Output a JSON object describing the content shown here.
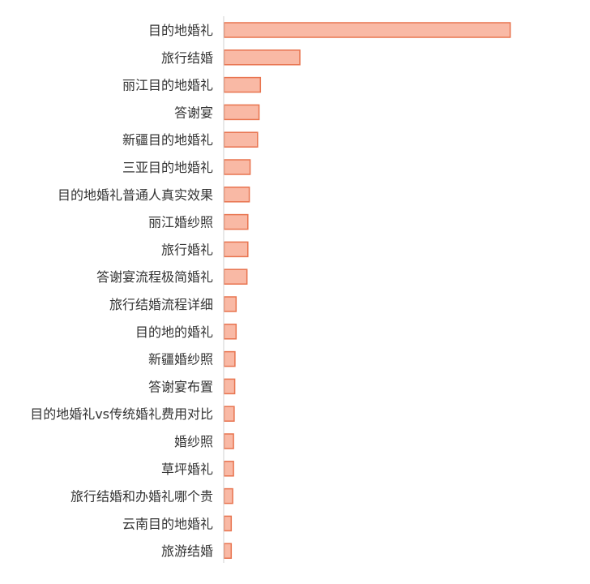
{
  "chart_data": {
    "type": "bar",
    "orientation": "horizontal",
    "title": "",
    "xlabel": "",
    "ylabel": "",
    "xlim": [
      0,
      100
    ],
    "grid": false,
    "legend": "none",
    "bar_fill": "#f9b9a5",
    "bar_stroke": "#e8744f",
    "axis_color": "#d0d0d0",
    "label_color": "#333333",
    "categories": [
      "目的地婚礼",
      "旅行结婚",
      "丽江目的地婚礼",
      "答谢宴",
      "新疆目的地婚礼",
      "三亚目的地婚礼",
      "目的地婚礼普通人真实效果",
      "丽江婚纱照",
      "旅行婚礼",
      "答谢宴流程极简婚礼",
      "旅行结婚流程详细",
      "目的地的婚礼",
      "新疆婚纱照",
      "答谢宴布置",
      "目的地婚礼vs传统婚礼费用对比",
      "婚纱照",
      "草坪婚礼",
      "旅行结婚和办婚礼哪个贵",
      "云南目的地婚礼",
      "旅游结婚"
    ],
    "values": [
      100,
      26.5,
      12.7,
      12.2,
      11.7,
      9.1,
      8.8,
      8.3,
      8.3,
      8.0,
      4.2,
      4.2,
      3.8,
      3.7,
      3.5,
      3.3,
      3.3,
      3.0,
      2.5,
      2.5
    ]
  }
}
